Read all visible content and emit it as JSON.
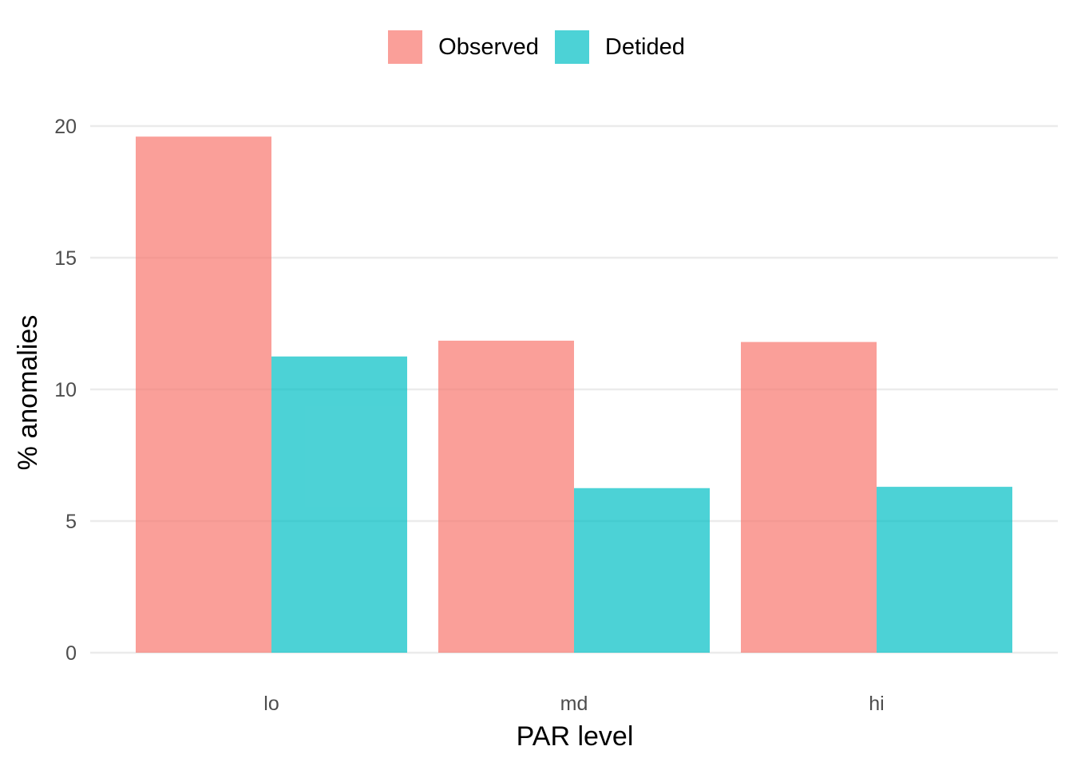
{
  "chart_data": {
    "type": "bar",
    "categories": [
      "lo",
      "md",
      "hi"
    ],
    "series": [
      {
        "name": "Observed",
        "color": "#F8766D",
        "values": [
          19.6,
          11.85,
          11.8
        ]
      },
      {
        "name": "Detided",
        "color": "#00BFC4",
        "values": [
          11.25,
          6.25,
          6.3
        ]
      }
    ],
    "xlabel": "PAR level",
    "ylabel": "% anomalies",
    "ylim": [
      0,
      20
    ],
    "yticks": [
      "0",
      "5",
      "10",
      "15",
      "20"
    ],
    "grid": true,
    "legend_position": "top"
  }
}
